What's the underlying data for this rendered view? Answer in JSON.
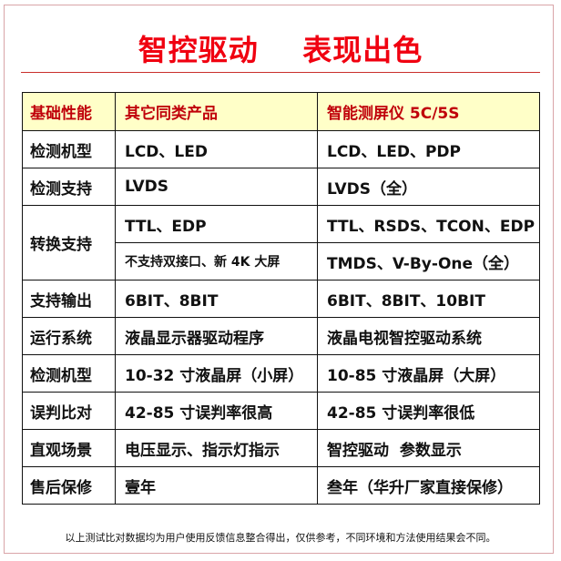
{
  "title": "智控驱动    表现出色",
  "table": {
    "headers": [
      "基础性能",
      "其它同类产品",
      "智能测屏仪 5C/5S"
    ],
    "rows": [
      {
        "feature": "检测机型",
        "other": "LCD、LED",
        "ours": "LCD、LED、PDP"
      },
      {
        "feature": "检测支持",
        "other": "LVDS",
        "ours": "LVDS（全）"
      },
      {
        "feature": "转换支持",
        "other": "TTL、EDP",
        "ours": "TTL、RSDS、TCON、EDP",
        "other2": "不支持双接口、新 4K 大屏",
        "ours2": "TMDS、V-By-One（全）"
      },
      {
        "feature": "支持输出",
        "other": "6BIT、8BIT",
        "ours": "6BIT、8BIT、10BIT"
      },
      {
        "feature": "运行系统",
        "other": "液晶显示器驱动程序",
        "ours": "液晶电视智控驱动系统"
      },
      {
        "feature": "检测机型",
        "other": "10-32 寸液晶屏（小屏）",
        "ours": "10-85 寸液晶屏（大屏）"
      },
      {
        "feature": "误判比对",
        "other": "42-85 寸误判率很高",
        "ours": "42-85 寸误判率很低"
      },
      {
        "feature": "直观场景",
        "other": "电压显示、指示灯指示",
        "ours": "智控驱动  参数显示"
      },
      {
        "feature": "售后保修",
        "other": "壹年",
        "ours": "叁年（华升厂家直接保修）"
      }
    ]
  },
  "note": "以上测试比对数据均为用户使用反馈信息整合得出，仅供参考，不同环境和方法使用结果会不同。",
  "colors": {
    "title": "#f00010",
    "header_bg": "#ffffc8",
    "header_text": "#c0000a"
  }
}
